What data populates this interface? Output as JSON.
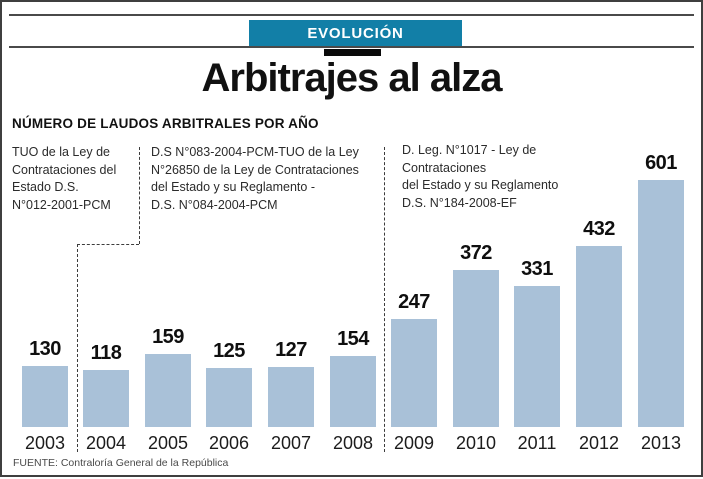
{
  "badge": {
    "label": "EVOLUCIÓN"
  },
  "title": "Arbitrajes al alza",
  "subtitle": "NÚMERO DE LAUDOS ARBITRALES POR AÑO",
  "annotations": [
    {
      "text": "TUO de la Ley de\nContrataciones del\nEstado D.S.\nN°012-2001-PCM"
    },
    {
      "text": "D.S N°083-2004-PCM-TUO de la Ley\nN°26850 de la Ley de Contrataciones\ndel Estado y su Reglamento -\nD.S. N°084-2004-PCM"
    },
    {
      "text": "D. Leg. N°1017 - Ley de Contrataciones\ndel Estado y su Reglamento\nD.S. N°184-2008-EF"
    }
  ],
  "chart_data": {
    "type": "bar",
    "categories": [
      "2003",
      "2004",
      "2005",
      "2006",
      "2007",
      "2008",
      "2009",
      "2010",
      "2011",
      "2012",
      "2013"
    ],
    "values": [
      130,
      118,
      159,
      125,
      127,
      154,
      247,
      372,
      331,
      432,
      601
    ],
    "title": "Arbitrajes al alza",
    "xlabel": "",
    "ylabel": "Número de laudos arbitrales por año",
    "ylim": [
      0,
      650
    ],
    "grid": false,
    "legend_position": "none",
    "value_labels": true,
    "bar_color": "#a9c1d8",
    "period_groups": [
      {
        "label": "TUO de la Ley de Contrataciones del Estado D.S. N°012-2001-PCM",
        "years": [
          "2003"
        ]
      },
      {
        "label": "D.S N°083-2004-PCM-TUO de la Ley N°26850 de la Ley de Contrataciones del Estado y su Reglamento - D.S. N°084-2004-PCM",
        "years": [
          "2004",
          "2005",
          "2006",
          "2007",
          "2008"
        ]
      },
      {
        "label": "D. Leg. N°1017 - Ley de Contrataciones del Estado y su Reglamento D.S. N°184-2008-EF",
        "years": [
          "2009",
          "2010",
          "2011",
          "2012",
          "2013"
        ]
      }
    ]
  },
  "source": "FUENTE: Contraloría General de la República",
  "colors": {
    "accent_teal": "#127fa7",
    "bar_blue": "#a9c1d8",
    "rule_gray": "#4a4a4a",
    "text_dark": "#111111"
  }
}
